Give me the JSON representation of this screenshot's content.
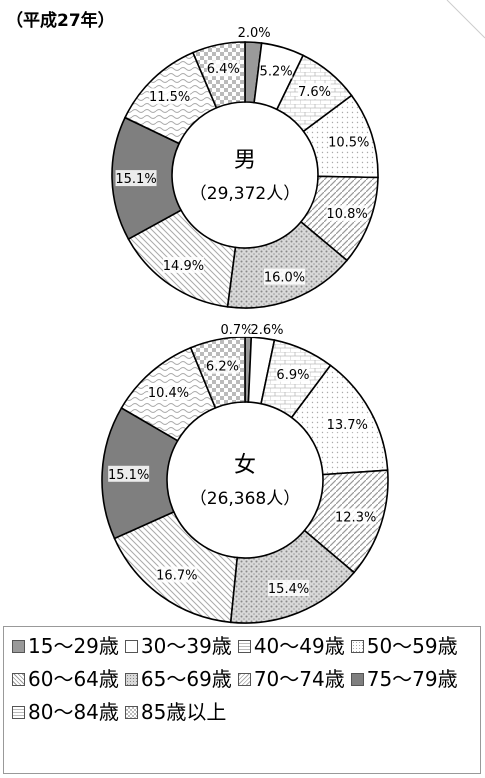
{
  "page_title": "（平成27年）",
  "chart_data": [
    {
      "type": "pie",
      "title": "男",
      "subtitle": "（29,372人）",
      "categories": [
        "15～29歳",
        "30～39歳",
        "40～49歳",
        "50～59歳",
        "60～64歳",
        "65～69歳",
        "70～74歳",
        "75～79歳",
        "80～84歳",
        "85歳以上"
      ],
      "values": [
        2.0,
        5.2,
        7.6,
        10.5,
        10.8,
        16.0,
        14.9,
        15.1,
        11.5,
        6.4
      ],
      "labels": [
        "2.0%",
        "5.2%",
        "7.6%",
        "10.5%",
        "10.8%",
        "16.0%",
        "14.9%",
        "15.1%",
        "11.5%",
        "6.4%"
      ]
    },
    {
      "type": "pie",
      "title": "女",
      "subtitle": "（26,368人）",
      "categories": [
        "15～29歳",
        "30～39歳",
        "40～49歳",
        "50～59歳",
        "60～64歳",
        "65～69歳",
        "70～74歳",
        "75～79歳",
        "80～84歳",
        "85歳以上"
      ],
      "values": [
        0.7,
        2.6,
        6.9,
        13.7,
        12.3,
        15.4,
        16.7,
        15.1,
        10.4,
        6.2
      ],
      "labels": [
        "0.7%",
        "2.6%",
        "6.9%",
        "13.7%",
        "12.3%",
        "15.4%",
        "16.7%",
        "15.1%",
        "10.4%",
        "6.2%"
      ]
    }
  ],
  "legend": [
    {
      "label": "15～29歳",
      "color": "#9a9a9a"
    },
    {
      "label": "30～39歳",
      "color": "#ffffff"
    },
    {
      "label": "40～49歳",
      "color": "#f4f4f4"
    },
    {
      "label": "50～59歳",
      "color": "#f7f7f7"
    },
    {
      "label": "60～64歳",
      "color": "#e2e2e2"
    },
    {
      "label": "65～69歳",
      "color": "#cfcfcf"
    },
    {
      "label": "70～74歳",
      "color": "#ebebeb"
    },
    {
      "label": "75～79歳",
      "color": "#808080"
    },
    {
      "label": "80～84歳",
      "color": "#f6f6f6"
    },
    {
      "label": "85歳以上",
      "color": "#bdbdbd"
    }
  ]
}
